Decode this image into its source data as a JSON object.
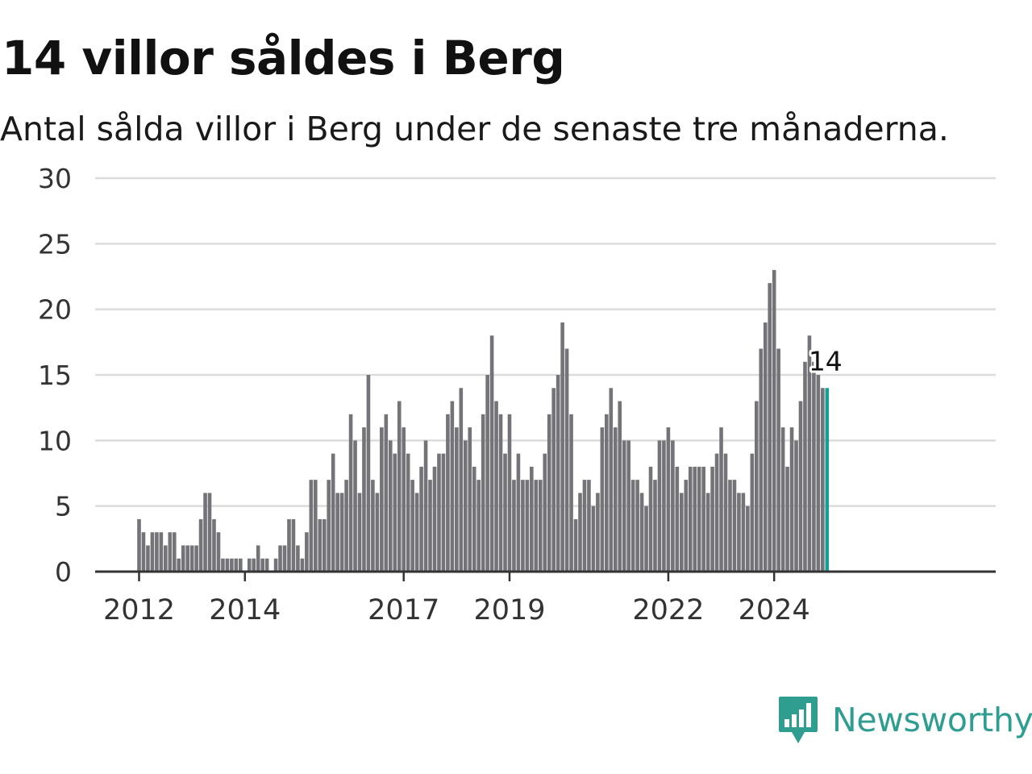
{
  "header": {
    "title": "14 villor såldes i Berg",
    "subtitle": "Antal sålda villor i Berg under de senaste tre månaderna."
  },
  "brand": {
    "name": "Newsworthy",
    "logo_icon": "bar-chart-speech-bubble-icon",
    "color": "#2f9d90"
  },
  "chart_data": {
    "type": "bar",
    "title": "14 villor såldes i Berg",
    "subtitle": "Antal sålda villor i Berg under de senaste tre månaderna.",
    "x_start": "2012-01",
    "x_step": "month",
    "ylim": [
      0,
      30
    ],
    "y_ticks": [
      0,
      5,
      10,
      15,
      20,
      25,
      30
    ],
    "x_tick_labels": [
      {
        "date": "2012-01",
        "label": "2012"
      },
      {
        "date": "2014-01",
        "label": "2014"
      },
      {
        "date": "2017-01",
        "label": "2017"
      },
      {
        "date": "2019-01",
        "label": "2019"
      },
      {
        "date": "2022-01",
        "label": "2022"
      },
      {
        "date": "2024-01",
        "label": "2024"
      }
    ],
    "grid": true,
    "colors": {
      "bar": "#747378",
      "highlight": "#1a9e94",
      "grid": "#dcdcdc",
      "axis": "#333333"
    },
    "last_value_label": "14",
    "values": [
      4,
      3,
      2,
      3,
      3,
      3,
      2,
      3,
      3,
      1,
      2,
      2,
      2,
      2,
      4,
      6,
      6,
      4,
      3,
      1,
      1,
      1,
      1,
      1,
      0,
      1,
      1,
      2,
      1,
      1,
      0,
      1,
      2,
      2,
      4,
      4,
      2,
      1,
      3,
      7,
      7,
      4,
      4,
      7,
      9,
      6,
      6,
      7,
      12,
      10,
      6,
      11,
      15,
      7,
      6,
      11,
      12,
      10,
      9,
      13,
      11,
      9,
      7,
      6,
      8,
      10,
      7,
      8,
      9,
      9,
      12,
      13,
      11,
      14,
      10,
      11,
      8,
      7,
      12,
      15,
      18,
      13,
      12,
      9,
      12,
      7,
      9,
      7,
      7,
      8,
      7,
      7,
      9,
      12,
      14,
      15,
      19,
      17,
      12,
      4,
      6,
      7,
      7,
      5,
      6,
      11,
      12,
      14,
      11,
      13,
      10,
      10,
      7,
      7,
      6,
      5,
      8,
      7,
      10,
      10,
      11,
      10,
      8,
      6,
      7,
      8,
      8,
      8,
      8,
      6,
      8,
      9,
      11,
      9,
      7,
      7,
      6,
      6,
      5,
      9,
      13,
      17,
      19,
      22,
      23,
      17,
      11,
      8,
      11,
      10,
      13,
      16,
      18,
      16,
      15,
      14,
      14
    ]
  }
}
